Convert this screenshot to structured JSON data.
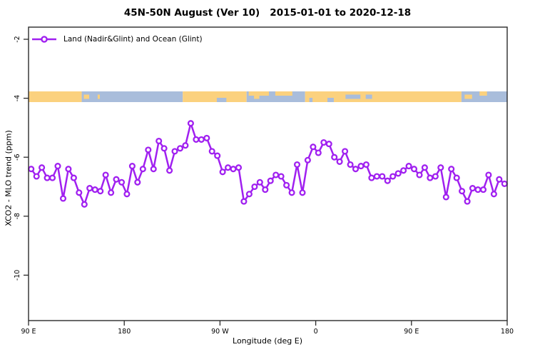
{
  "title": "45N-50N August (Ver 10)   2015-01-01 to 2020-12-18",
  "legend": {
    "label": "Land (Nadir&Glint) and Ocean (Glint)"
  },
  "axes": {
    "x_label": "Longitude (deg E)",
    "y_label": "XCO2 - MLO trend (ppm)",
    "x_ticks": [
      {
        "label": "90 E",
        "lon": 90
      },
      {
        "label": "180",
        "lon": 180
      },
      {
        "label": "90 W",
        "lon": 270
      },
      {
        "label": "0",
        "lon": 360
      },
      {
        "label": "90 E",
        "lon": 450
      },
      {
        "label": "180",
        "lon": 540
      }
    ],
    "y_ticks": [
      {
        "label": "-2",
        "value": -2
      },
      {
        "label": "-4",
        "value": -4
      },
      {
        "label": "-6",
        "value": -6
      },
      {
        "label": "-8",
        "value": -8
      },
      {
        "label": "-10",
        "value": -10
      }
    ]
  },
  "colors": {
    "series": "#A020F0",
    "marker_fill": "#ffffff",
    "land": "#FBD17E",
    "ocean": "#A9BDDB",
    "axis": "#2b2b2b",
    "text": "#000000"
  },
  "map_band": {
    "value": -4,
    "segments": [
      {
        "type": "land",
        "from": 90,
        "to": 140
      },
      {
        "type": "ocean",
        "from": 140,
        "to": 235
      },
      {
        "type": "land",
        "from": 235,
        "to": 295
      },
      {
        "type": "ocean",
        "from": 295,
        "to": 350
      },
      {
        "type": "land",
        "from": 350,
        "to": 497
      },
      {
        "type": "ocean",
        "from": 497,
        "to": 540
      }
    ],
    "details": [
      {
        "type": "land",
        "from": 142,
        "to": 147,
        "vpos": "mid"
      },
      {
        "type": "land",
        "from": 155,
        "to": 157,
        "vpos": "mid"
      },
      {
        "type": "ocean",
        "from": 267,
        "to": 276,
        "vpos": "bottom"
      },
      {
        "type": "land",
        "from": 297,
        "to": 316,
        "vpos": "top"
      },
      {
        "type": "land",
        "from": 322,
        "to": 338,
        "vpos": "top"
      },
      {
        "type": "land",
        "from": 302,
        "to": 307,
        "vpos": "mid"
      },
      {
        "type": "ocean",
        "from": 354,
        "to": 357,
        "vpos": "bottom"
      },
      {
        "type": "ocean",
        "from": 371,
        "to": 377,
        "vpos": "bottom"
      },
      {
        "type": "ocean",
        "from": 388,
        "to": 402,
        "vpos": "mid"
      },
      {
        "type": "ocean",
        "from": 407,
        "to": 413,
        "vpos": "mid"
      },
      {
        "type": "land",
        "from": 500,
        "to": 507,
        "vpos": "mid"
      },
      {
        "type": "land",
        "from": 514,
        "to": 521,
        "vpos": "top"
      }
    ]
  },
  "chart_data": {
    "type": "line",
    "title": "45N-50N August (Ver 10)   2015-01-01 to 2020-12-18",
    "xlabel": "Longitude (deg E)",
    "ylabel": "XCO2 - MLO trend (ppm)",
    "xlim": [
      90,
      540
    ],
    "ylim": [
      -11.5,
      -1.6
    ],
    "grid": false,
    "legend_position": "topleft",
    "series_name": "Land (Nadir&Glint) and Ocean (Glint)",
    "x_is_longitude_deg_e_continuous": true,
    "x": [
      92.5,
      97.5,
      102.5,
      107.5,
      112.5,
      117.5,
      122.5,
      127.5,
      132.5,
      137.5,
      142.5,
      147.5,
      152.5,
      157.5,
      162.5,
      167.5,
      172.5,
      177.5,
      182.5,
      187.5,
      192.5,
      197.5,
      202.5,
      207.5,
      212.5,
      217.5,
      222.5,
      227.5,
      232.5,
      237.5,
      242.5,
      247.5,
      252.5,
      257.5,
      262.5,
      267.5,
      272.5,
      277.5,
      282.5,
      287.5,
      292.5,
      297.5,
      302.5,
      307.5,
      312.5,
      317.5,
      322.5,
      327.5,
      332.5,
      337.5,
      342.5,
      347.5,
      352.5,
      357.5,
      362.5,
      367.5,
      372.5,
      377.5,
      382.5,
      387.5,
      392.5,
      397.5,
      402.5,
      407.5,
      412.5,
      417.5,
      422.5,
      427.5,
      432.5,
      437.5,
      442.5,
      447.5,
      452.5,
      457.5,
      462.5,
      467.5,
      472.5,
      477.5,
      482.5,
      487.5,
      492.5,
      497.5,
      502.5,
      507.5,
      512.5,
      517.5,
      522.5,
      527.5,
      532.5,
      537.5
    ],
    "values": [
      -6.4,
      -6.65,
      -6.35,
      -6.7,
      -6.7,
      -6.3,
      -7.4,
      -6.4,
      -6.7,
      -7.2,
      -7.6,
      -7.05,
      -7.1,
      -7.15,
      -6.6,
      -7.2,
      -6.75,
      -6.85,
      -7.25,
      -6.3,
      -6.85,
      -6.4,
      -5.75,
      -6.4,
      -5.45,
      -5.7,
      -6.45,
      -5.8,
      -5.7,
      -5.6,
      -4.85,
      -5.4,
      -5.4,
      -5.35,
      -5.8,
      -5.95,
      -6.5,
      -6.35,
      -6.4,
      -6.35,
      -7.5,
      -7.25,
      -7.0,
      -6.85,
      -7.1,
      -6.8,
      -6.6,
      -6.65,
      -6.95,
      -7.2,
      -6.25,
      -7.2,
      -6.1,
      -5.65,
      -5.85,
      -5.5,
      -5.55,
      -6.0,
      -6.15,
      -5.8,
      -6.25,
      -6.4,
      -6.3,
      -6.25,
      -6.7,
      -6.65,
      -6.65,
      -6.8,
      -6.65,
      -6.55,
      -6.45,
      -6.3,
      -6.4,
      -6.6,
      -6.35,
      -6.7,
      -6.65,
      -6.35,
      -7.35,
      -6.4,
      -6.7,
      -7.15,
      -7.5,
      -7.05,
      -7.1,
      -7.1,
      -6.6,
      -7.25,
      -6.75,
      -6.9
    ]
  }
}
